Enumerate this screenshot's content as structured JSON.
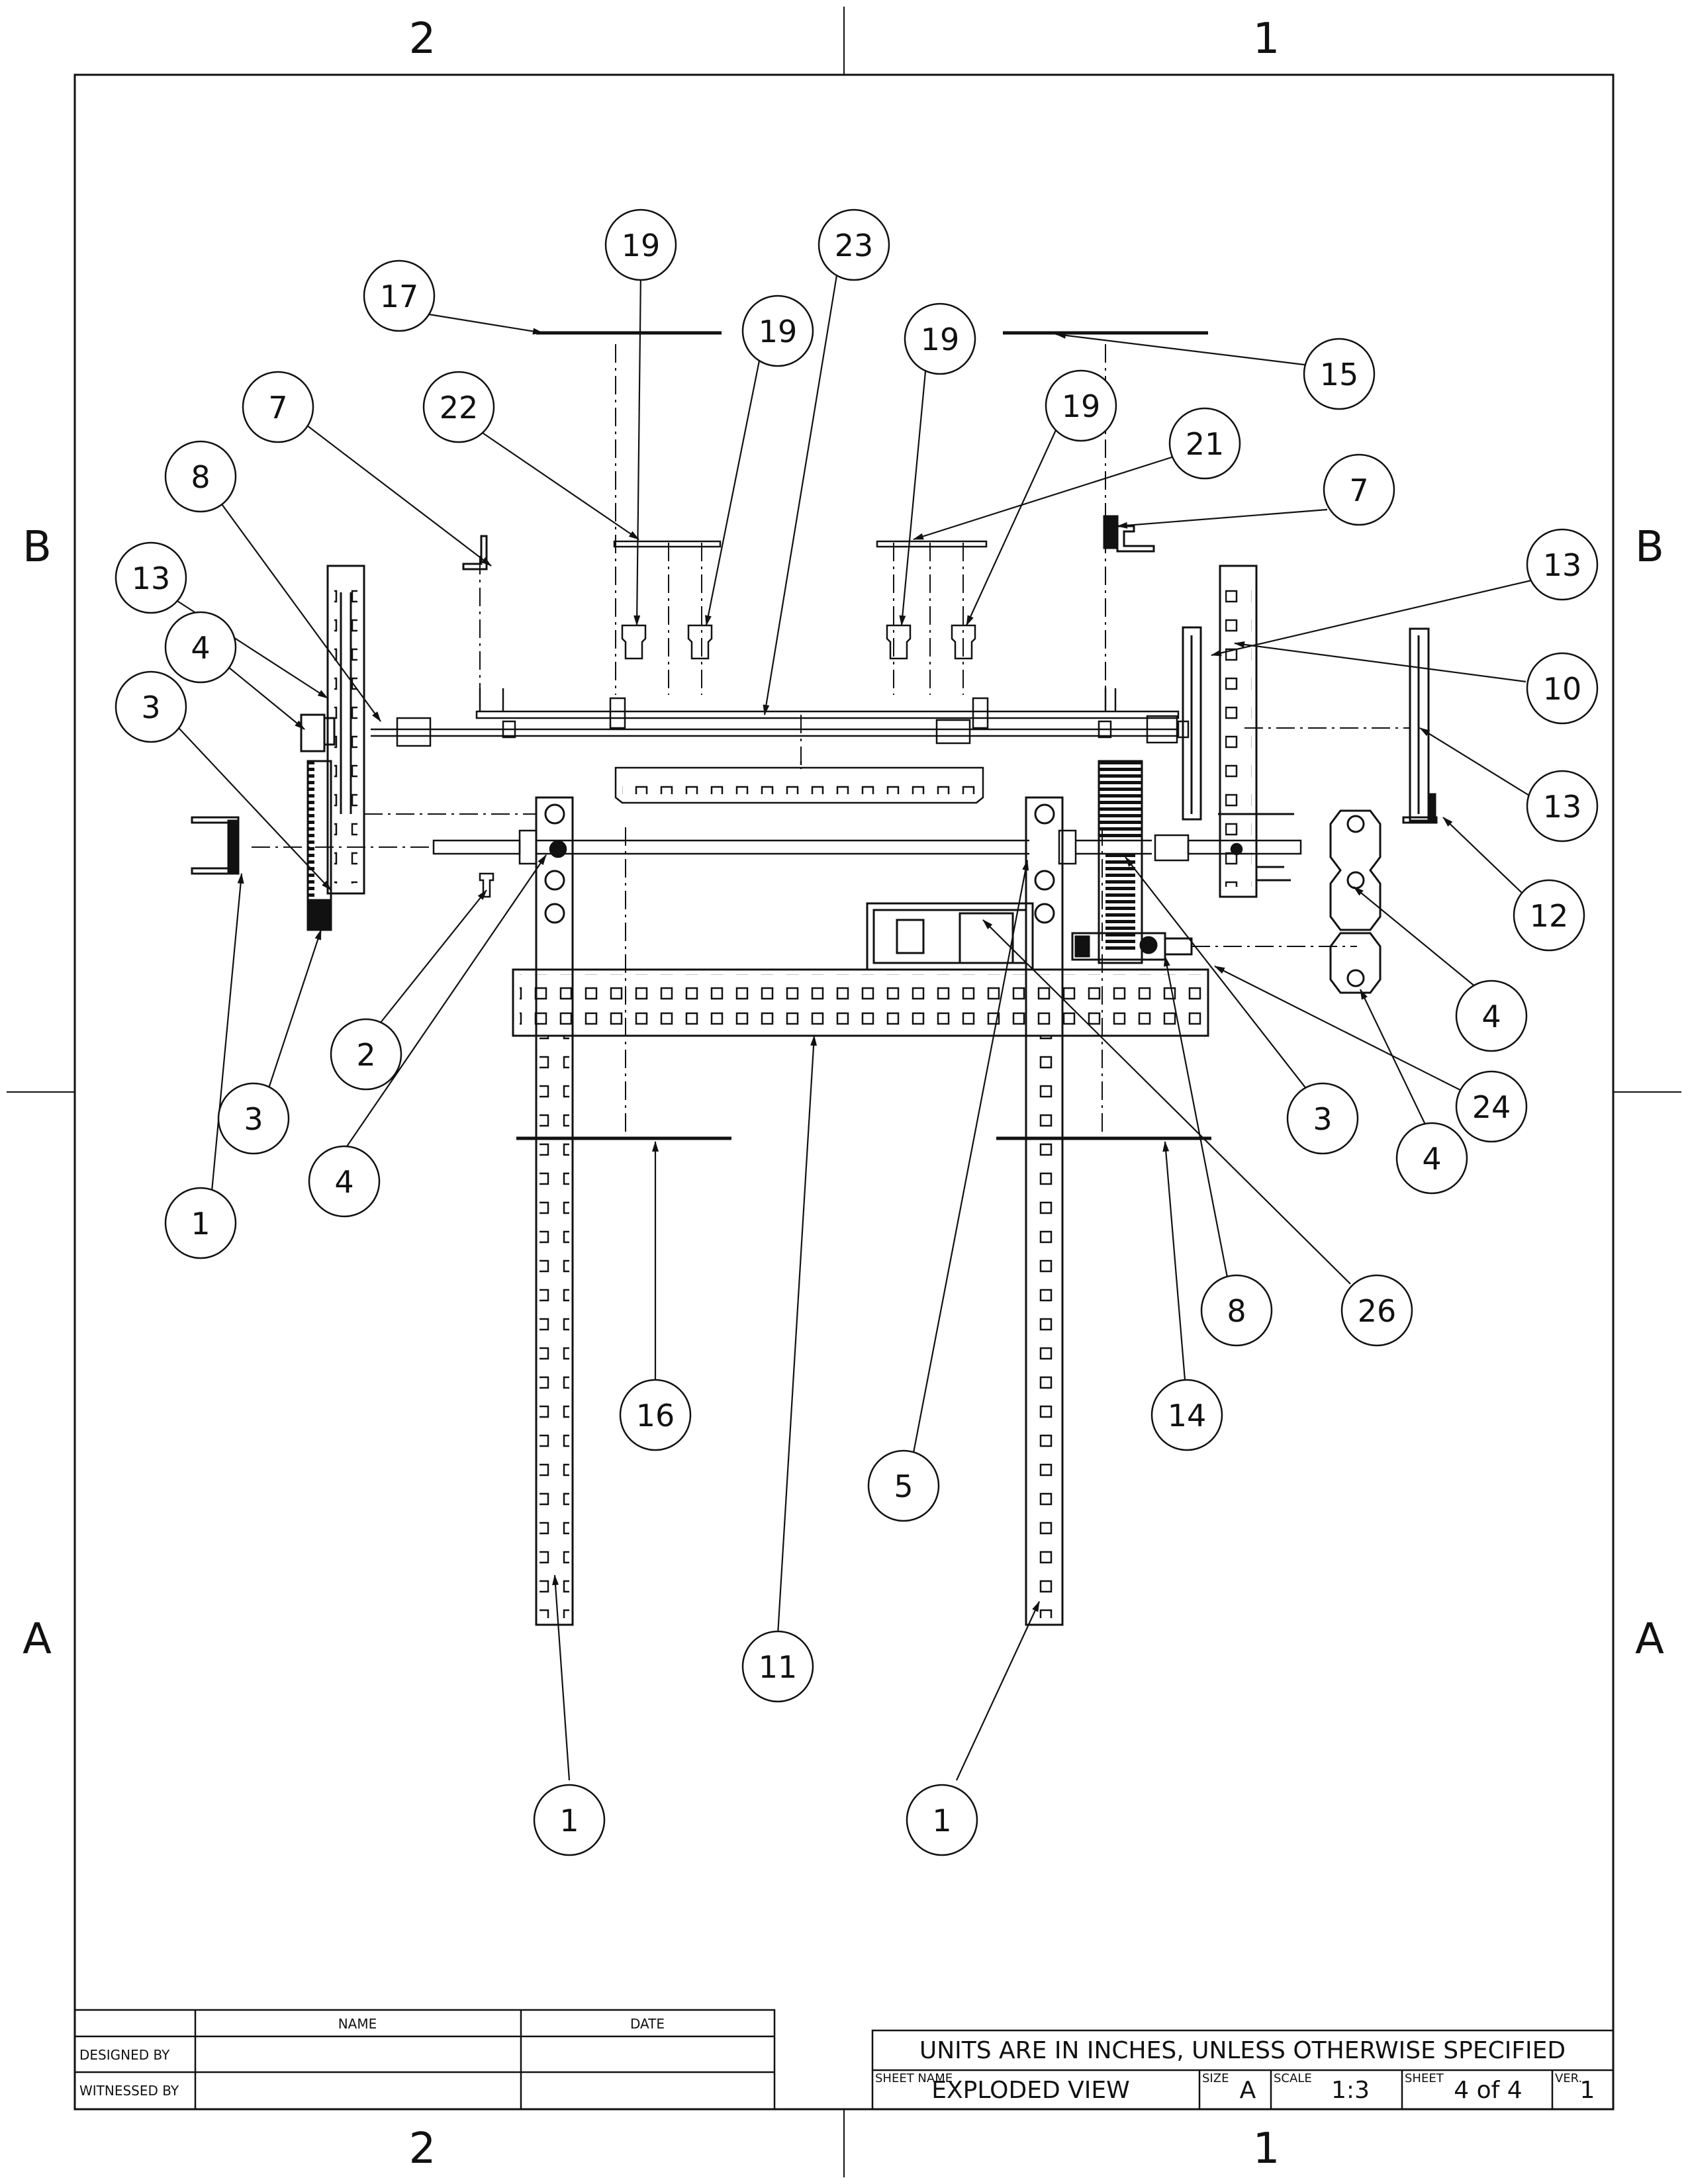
{
  "zones": {
    "top": [
      "2",
      "1"
    ],
    "bottom": [
      "2",
      "1"
    ],
    "left": [
      "B",
      "A"
    ],
    "right": [
      "B",
      "A"
    ]
  },
  "balloons": [
    {
      "label": "17"
    },
    {
      "label": "19"
    },
    {
      "label": "23"
    },
    {
      "label": "19"
    },
    {
      "label": "19"
    },
    {
      "label": "15"
    },
    {
      "label": "7"
    },
    {
      "label": "22"
    },
    {
      "label": "19"
    },
    {
      "label": "21"
    },
    {
      "label": "8"
    },
    {
      "label": "7"
    },
    {
      "label": "13"
    },
    {
      "label": "13"
    },
    {
      "label": "4"
    },
    {
      "label": "10"
    },
    {
      "label": "3"
    },
    {
      "label": "13"
    },
    {
      "label": "12"
    },
    {
      "label": "2"
    },
    {
      "label": "4"
    },
    {
      "label": "3"
    },
    {
      "label": "3"
    },
    {
      "label": "24"
    },
    {
      "label": "4"
    },
    {
      "label": "4"
    },
    {
      "label": "1"
    },
    {
      "label": "8"
    },
    {
      "label": "26"
    },
    {
      "label": "16"
    },
    {
      "label": "14"
    },
    {
      "label": "5"
    },
    {
      "label": "11"
    },
    {
      "label": "1"
    },
    {
      "label": "1"
    }
  ],
  "title_block": {
    "left": {
      "header_name": "NAME",
      "header_date": "DATE",
      "row1_label": "DESIGNED BY",
      "row2_label": "WITNESSED BY"
    },
    "right": {
      "units_note": "UNITS ARE IN INCHES, UNLESS OTHERWISE SPECIFIED",
      "sheet_name_label": "SHEET NAME",
      "sheet_name": "EXPLODED VIEW",
      "size_label": "SIZE",
      "size": "A",
      "scale_label": "SCALE",
      "scale": "1:3",
      "sheet_label": "SHEET",
      "sheet": "4 of 4",
      "ver_label": "VER.",
      "ver": "1"
    }
  }
}
